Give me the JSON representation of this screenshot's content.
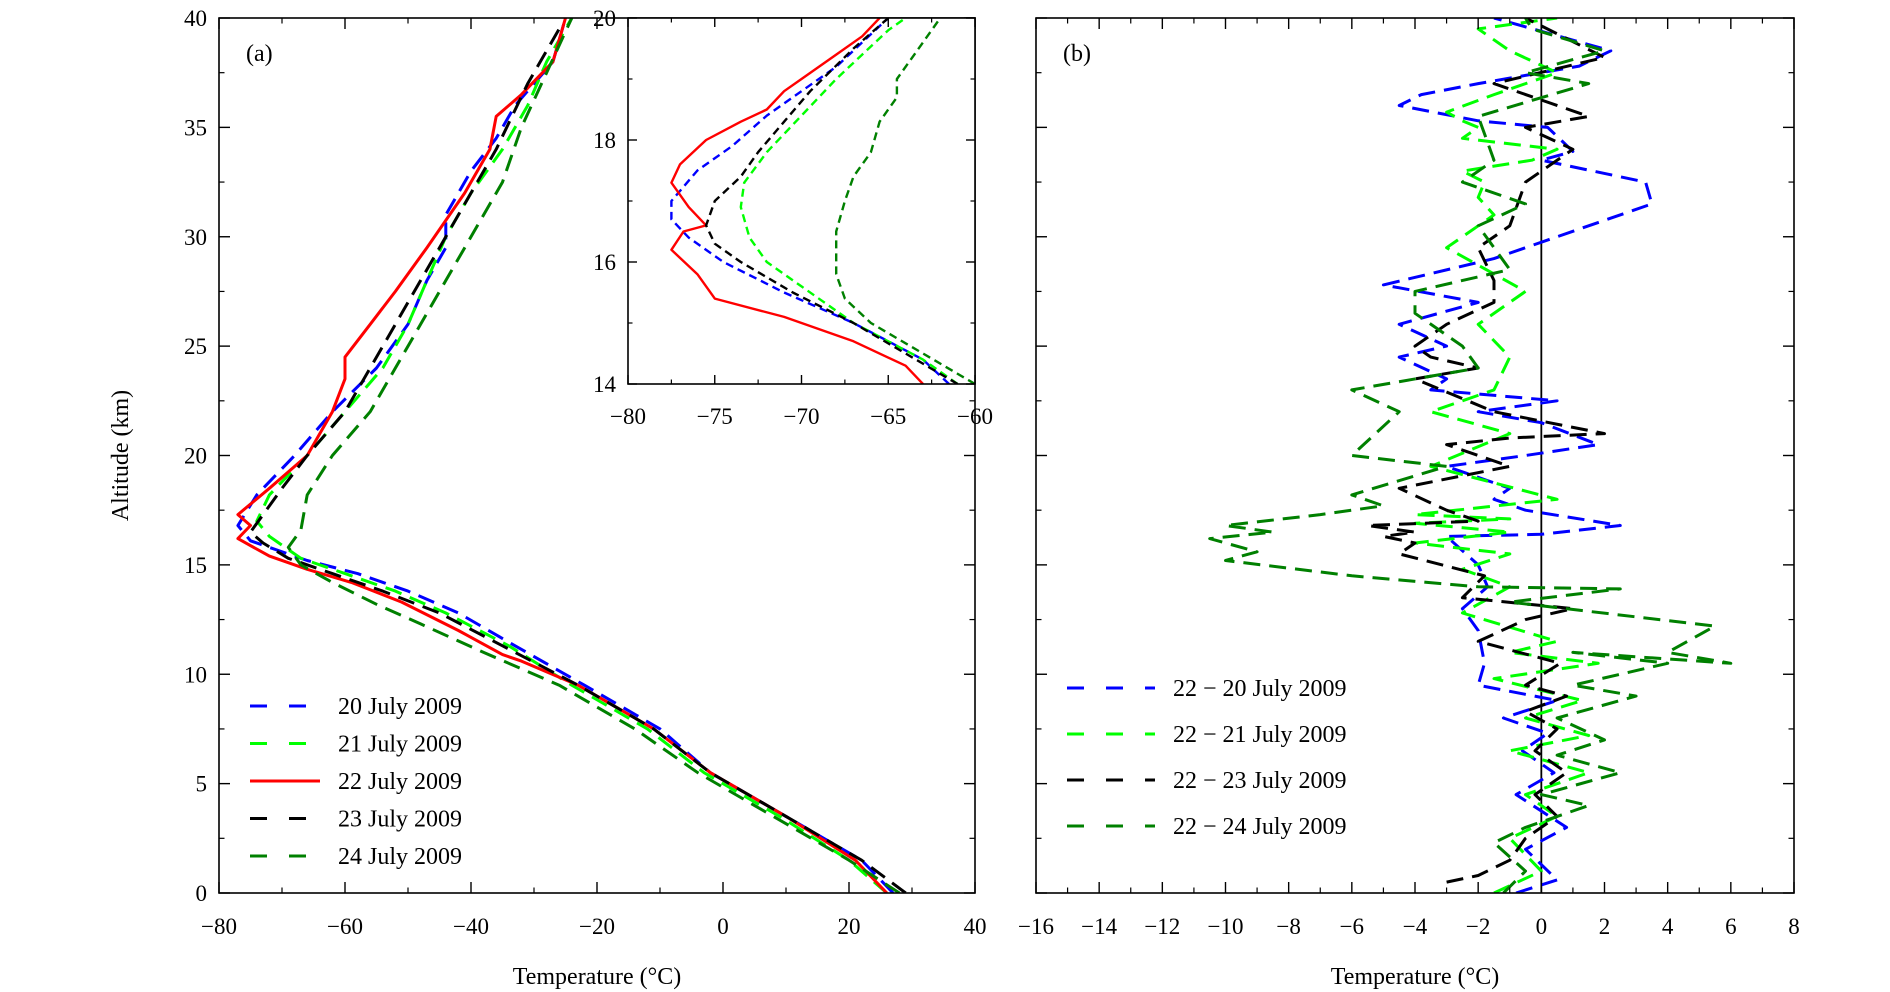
{
  "colors": {
    "blue": "#0000ff",
    "lime": "#00ff00",
    "red": "#ff0000",
    "black": "#000000",
    "darkgreen": "#008000"
  },
  "chart_data": [
    {
      "id": "a",
      "type": "line",
      "panel_label": "(a)",
      "xlabel": "Temperature (°C)",
      "ylabel": "Altitude (km)",
      "xlim": [
        -80,
        40
      ],
      "ylim": [
        0,
        40
      ],
      "xticks": [
        -80,
        -60,
        -40,
        -20,
        0,
        20,
        40
      ],
      "yticks": [
        0,
        5,
        10,
        15,
        20,
        25,
        30,
        35,
        40
      ],
      "legend_position": "bottom-left",
      "series": [
        {
          "name": "20 July 2009",
          "color": "#0000ff",
          "dash": "dashed",
          "x": [
            27,
            22,
            10,
            -2,
            -10,
            -22,
            -33,
            -42,
            -50,
            -58,
            -66,
            -75,
            -77,
            -74,
            -68,
            -62,
            -55,
            -50,
            -47,
            -44,
            -44,
            -40,
            -36,
            -33,
            -27,
            -25
          ],
          "y": [
            0,
            1.5,
            3.5,
            5.5,
            7.5,
            9.5,
            11.3,
            12.8,
            13.8,
            14.6,
            15.2,
            16.1,
            16.8,
            18.2,
            20,
            22,
            24,
            26,
            28,
            29.5,
            31,
            33,
            34.5,
            36,
            38,
            40
          ]
        },
        {
          "name": "21 July 2009",
          "color": "#00ff00",
          "dash": "dashed",
          "x": [
            26,
            20,
            9,
            -3,
            -12,
            -24,
            -34,
            -44,
            -52,
            -60,
            -67,
            -72,
            -74,
            -72,
            -66,
            -60,
            -54,
            -50,
            -47,
            -44,
            -40,
            -35,
            -31,
            -28,
            -24
          ],
          "y": [
            0,
            1.5,
            3.5,
            5.5,
            7.5,
            9.5,
            11.3,
            12.8,
            13.8,
            14.6,
            15.3,
            16.3,
            17,
            18.2,
            20,
            22,
            24,
            26,
            28,
            30,
            32,
            34,
            36,
            38,
            40
          ]
        },
        {
          "name": "22 July 2009",
          "color": "#ff0000",
          "dash": "solid",
          "x": [
            26,
            21,
            10,
            -2,
            -11,
            -23,
            -32,
            -35,
            -42,
            -51,
            -59,
            -66,
            -72,
            -77,
            -75,
            -77,
            -72,
            -66,
            -62,
            -60,
            -60,
            -56,
            -52,
            -47,
            -41,
            -37,
            -36,
            -32,
            -27,
            -25
          ],
          "y": [
            0,
            1.5,
            3.5,
            5.5,
            7.5,
            9.5,
            10.6,
            10.9,
            12,
            13.3,
            14.2,
            14.8,
            15.4,
            16.2,
            16.8,
            17.3,
            18.5,
            20,
            22,
            23.5,
            24.5,
            26,
            27.5,
            29.5,
            32,
            34,
            35.5,
            36.5,
            38,
            40
          ]
        },
        {
          "name": "23 July 2009",
          "color": "#000000",
          "dash": "dashed",
          "x": [
            29,
            22,
            10,
            -2,
            -11,
            -23,
            -35,
            -45,
            -54,
            -62,
            -69,
            -73,
            -75,
            -73,
            -70,
            -66,
            -60,
            -56,
            -52,
            -48,
            -44,
            -40,
            -36,
            -31,
            -26
          ],
          "y": [
            0,
            1.5,
            3.5,
            5.5,
            7.5,
            9.5,
            11.3,
            12.8,
            13.8,
            14.6,
            15.3,
            16,
            16.5,
            17.3,
            18.5,
            20,
            22,
            24,
            26,
            28,
            30,
            32,
            34,
            37,
            39.5
          ]
        },
        {
          "name": "24 July 2009",
          "color": "#008000",
          "dash": "dashed",
          "x": [
            28,
            20,
            8,
            -4,
            -14,
            -26,
            -38,
            -48,
            -55,
            -62,
            -67,
            -69,
            -67,
            -66,
            -62,
            -56,
            -52,
            -48,
            -44,
            -40,
            -35,
            -32,
            -28,
            -24
          ],
          "y": [
            0,
            1.5,
            3.5,
            5.5,
            7.5,
            9.5,
            11,
            12.3,
            13.2,
            14.2,
            15,
            15.8,
            16.6,
            18.2,
            20,
            22,
            24,
            26,
            28,
            30,
            32.5,
            35,
            37.5,
            40
          ]
        }
      ]
    },
    {
      "id": "inset",
      "type": "line",
      "xlim": [
        -80,
        -60
      ],
      "ylim": [
        14,
        20
      ],
      "xticks": [
        -80,
        -75,
        -70,
        -65,
        -60
      ],
      "yticks": [
        14,
        16,
        18,
        20
      ],
      "series": [
        {
          "name": "20 July 2009",
          "color": "#0000ff",
          "dash": "dashed",
          "x": [
            -61.5,
            -63,
            -67,
            -71,
            -74.5,
            -76.5,
            -77.5,
            -77.5,
            -76,
            -74,
            -72,
            -70,
            -68,
            -66.5,
            -65
          ],
          "y": [
            14,
            14.4,
            15,
            15.5,
            16,
            16.4,
            16.7,
            17,
            17.5,
            17.9,
            18.4,
            18.8,
            19.2,
            19.6,
            20
          ]
        },
        {
          "name": "21 July 2009",
          "color": "#00ff00",
          "dash": "dashed",
          "x": [
            -61,
            -63,
            -67,
            -70,
            -72,
            -73,
            -73.5,
            -73.3,
            -72,
            -70,
            -68,
            -66.5,
            -65,
            -64
          ],
          "y": [
            14,
            14.4,
            15,
            15.6,
            16,
            16.4,
            16.9,
            17.3,
            17.8,
            18.4,
            19,
            19.4,
            19.8,
            20
          ]
        },
        {
          "name": "22 July 2009",
          "color": "#ff0000",
          "dash": "solid",
          "x": [
            -63,
            -64,
            -67,
            -71,
            -75,
            -76,
            -77.5,
            -76.8,
            -75.5,
            -76.5,
            -77.5,
            -77,
            -75.5,
            -73.5,
            -72,
            -71,
            -70,
            -68,
            -66.5,
            -65.5
          ],
          "y": [
            14,
            14.3,
            14.7,
            15.1,
            15.4,
            15.8,
            16.2,
            16.5,
            16.6,
            16.9,
            17.3,
            17.6,
            18,
            18.3,
            18.5,
            18.8,
            19,
            19.4,
            19.7,
            20
          ]
        },
        {
          "name": "23 July 2009",
          "color": "#000000",
          "dash": "dashed",
          "x": [
            -61,
            -64,
            -67,
            -70.5,
            -73.5,
            -75,
            -75.5,
            -75,
            -73.5,
            -72.5,
            -71,
            -69.5,
            -67,
            -65
          ],
          "y": [
            14,
            14.5,
            15,
            15.5,
            16,
            16.3,
            16.6,
            17,
            17.4,
            17.8,
            18.3,
            18.8,
            19.5,
            20
          ]
        },
        {
          "name": "24 July 2009",
          "color": "#008000",
          "dash": "dashed",
          "x": [
            -60,
            -63,
            -66,
            -67.5,
            -68,
            -68,
            -67.5,
            -67,
            -66,
            -65.5,
            -64.5,
            -64.5,
            -63,
            -62
          ],
          "y": [
            14,
            14.5,
            15,
            15.4,
            15.8,
            16.5,
            17,
            17.4,
            17.8,
            18.3,
            18.7,
            19,
            19.6,
            20
          ]
        }
      ]
    },
    {
      "id": "b",
      "type": "line",
      "panel_label": "(b)",
      "xlabel": "Temperature (°C)",
      "xlim": [
        -16,
        8
      ],
      "ylim": [
        0,
        40
      ],
      "xticks": [
        -16,
        -14,
        -12,
        -10,
        -8,
        -6,
        -4,
        -2,
        0,
        2,
        4,
        6,
        8
      ],
      "yticks": [
        0,
        5,
        10,
        15,
        20,
        25,
        30,
        35,
        40
      ],
      "zero_line": 0,
      "legend_position": "bottom-left",
      "series": [
        {
          "name": "22 − 20 July 2009",
          "color": "#0000ff",
          "dash": "dashed",
          "x": [
            -0.8,
            0.5,
            -0.5,
            0.8,
            -0.8,
            0.4,
            -0.6,
            0.2,
            -1.2,
            0.5,
            -2,
            -1.8,
            -2,
            -2.5,
            -1.7,
            -2,
            -3,
            0,
            2.5,
            -0.5,
            -1.5,
            -1,
            -3,
            -0.5,
            1.8,
            0,
            -2,
            0.5,
            -3.5,
            -3,
            -4.5,
            -3,
            -4.5,
            -2,
            -5,
            -1.5,
            3.5,
            3.3,
            0,
            1,
            0.2,
            -2,
            -4.5,
            -3.8,
            -2,
            1.2,
            2.2,
            -1.5
          ],
          "y": [
            0,
            0.6,
            2,
            3,
            4.5,
            5.5,
            6.5,
            7.3,
            8,
            8.8,
            9.5,
            10.5,
            12,
            13,
            14,
            15,
            16.3,
            16.4,
            16.8,
            17.5,
            18,
            18.5,
            19.5,
            20,
            20.5,
            21.5,
            22,
            22.5,
            23,
            23.5,
            24.5,
            25,
            26,
            27,
            27.8,
            29,
            31.5,
            32.5,
            33.5,
            33.9,
            35,
            35.3,
            36,
            36.5,
            37,
            37.8,
            38.5,
            40
          ]
        },
        {
          "name": "22 − 21 July 2009",
          "color": "#00ff00",
          "dash": "dashed",
          "x": [
            -1.5,
            0,
            -1,
            0.5,
            -0.5,
            1.5,
            -1,
            1.5,
            -0.5,
            1.3,
            -1.5,
            1.8,
            -1,
            0.5,
            -2.5,
            -1,
            -2.5,
            -1,
            -4,
            -1,
            -4,
            -1,
            -4,
            0.5,
            -3.5,
            -1,
            -3.5,
            -1.5,
            -1,
            -2,
            -0.5,
            -3,
            -1.5,
            -2,
            -1.8,
            -2.5,
            -0.3,
            0.5,
            -2.5,
            -2,
            -2.5,
            -3,
            -1.5,
            0.5,
            -1,
            -2,
            0.5
          ],
          "y": [
            0,
            1,
            2.5,
            3.5,
            4.5,
            5.5,
            6.5,
            7.2,
            8,
            8.8,
            9.8,
            10.5,
            11,
            11.5,
            12.8,
            14,
            14.8,
            15.5,
            16,
            16.5,
            16.9,
            17.1,
            17.3,
            18,
            19.5,
            21,
            22,
            23,
            24.5,
            26,
            27.5,
            29.5,
            31,
            31.8,
            32.5,
            33,
            33.5,
            34,
            34.5,
            35,
            35.3,
            35.7,
            36.5,
            37.5,
            38.5,
            39.5,
            40
          ]
        },
        {
          "name": "22 − 23 July 2009",
          "color": "#000000",
          "dash": "dashed",
          "x": [
            -3,
            -2,
            -1,
            -0.5,
            0.5,
            -0.2,
            0.8,
            -0.2,
            0.5,
            -0.5,
            0.8,
            -0.5,
            0.6,
            -2,
            -0.5,
            1,
            -2.5,
            -1.8,
            -4.5,
            -4,
            -5,
            -4,
            -5.5,
            -2,
            -3,
            -4.5,
            -1,
            -2,
            -3,
            -1,
            2,
            -1.5,
            -4,
            -2,
            -3.5,
            -4,
            -3,
            -1.5,
            -1.5,
            -2,
            -1,
            -0.5,
            1,
            -0.5,
            1.5,
            -1.5,
            2,
            -0.5
          ],
          "y": [
            0.5,
            0.8,
            1.5,
            2.5,
            3.5,
            4.5,
            5.5,
            6.5,
            7.5,
            8.3,
            9,
            9.5,
            10.5,
            11.5,
            12.5,
            13,
            13.5,
            14.5,
            15.5,
            16,
            16.3,
            16.5,
            16.8,
            17,
            17.5,
            18.5,
            19.5,
            20,
            20.5,
            20.8,
            21,
            22,
            23.5,
            24,
            24.5,
            25,
            26,
            27,
            28,
            29.5,
            30.5,
            32.5,
            34,
            35,
            35.5,
            37,
            38.2,
            40
          ]
        },
        {
          "name": "22 − 24 July 2009",
          "color": "#008000",
          "dash": "dashed",
          "x": [
            -1.2,
            -0.5,
            -1.5,
            -0.5,
            1.5,
            0,
            2.5,
            0.5,
            2,
            0.5,
            3,
            1,
            4,
            1,
            6,
            4,
            5.5,
            -1,
            2.5,
            -2,
            -6,
            -10,
            -9,
            -10.5,
            -8.5,
            -10,
            -7,
            -5,
            -6,
            -3,
            -6,
            -4.5,
            -6,
            -2,
            -2.5,
            -4,
            -4,
            -1,
            -1.5,
            -2,
            -0.5,
            -2.5,
            -1.5,
            -2,
            1.5,
            -0.5,
            2,
            -0.3,
            -0.5
          ],
          "y": [
            0,
            1,
            2.3,
            3,
            4,
            4.5,
            5.5,
            6.3,
            7,
            8,
            9,
            9.5,
            10.5,
            11,
            10.5,
            11,
            12.2,
            13.3,
            13.9,
            14,
            14.5,
            15.2,
            15.6,
            16.2,
            16.5,
            16.8,
            17.3,
            17.7,
            18.2,
            19.5,
            20,
            22,
            23,
            24,
            25,
            26.5,
            27.5,
            28.5,
            29.5,
            30.5,
            31.5,
            32.5,
            33.5,
            35.5,
            37,
            37.5,
            38.5,
            39.5,
            40
          ]
        }
      ]
    }
  ]
}
